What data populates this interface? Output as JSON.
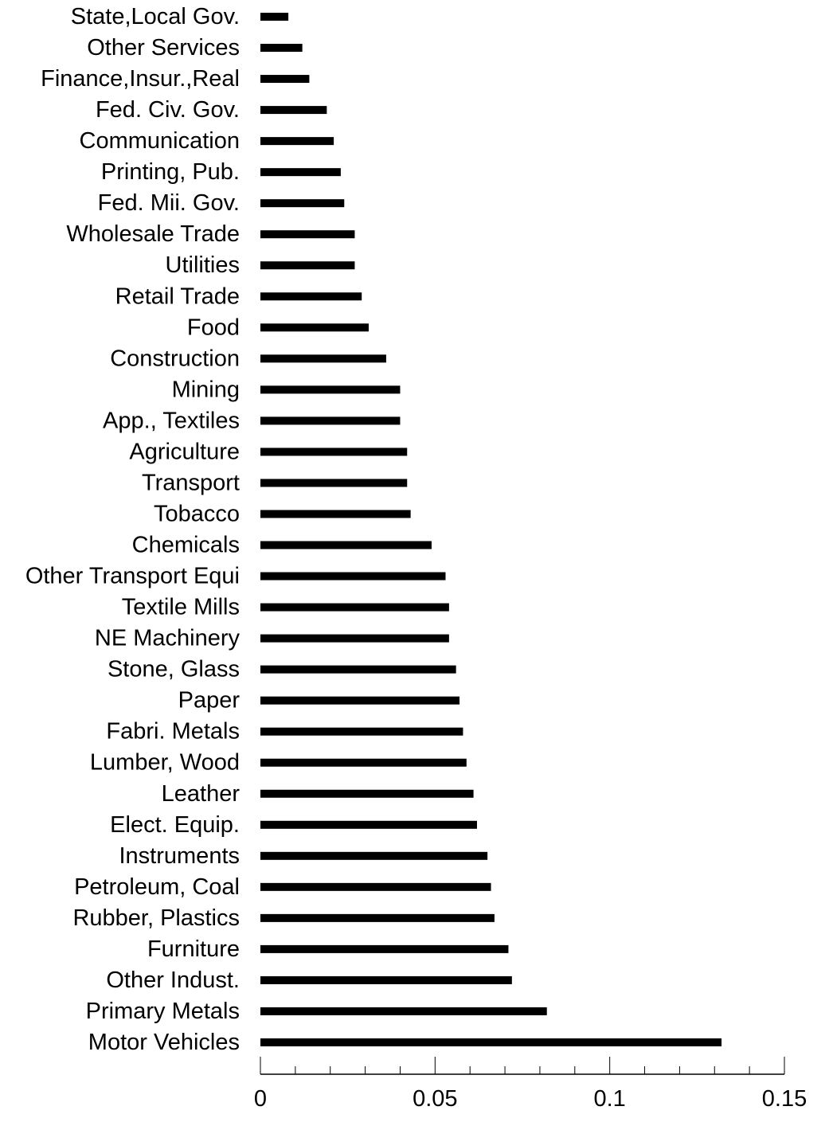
{
  "chart_data": {
    "type": "bar",
    "orientation": "horizontal",
    "title": "",
    "xlabel": "",
    "ylabel": "",
    "xlim": [
      0,
      0.15
    ],
    "x_ticks": [
      0,
      0.05,
      0.1,
      0.15
    ],
    "x_tick_labels": [
      "0",
      "0.05",
      "0.1",
      "0.15"
    ],
    "grid": false,
    "legend": "none",
    "bar_color": "#000000",
    "categories": [
      "State,Local Gov.",
      "Other Services",
      "Finance,Insur.,Real",
      "Fed. Civ. Gov.",
      "Communication",
      "Printing, Pub.",
      "Fed. Mii. Gov.",
      "Wholesale  Trade",
      "Utilities",
      "Retail Trade",
      "Food",
      "Construction",
      "Mining",
      "App., Textiles",
      "Agriculture",
      "Transport",
      "Tobacco",
      "Chemicals",
      "Other Transport Equi",
      "Textile Mills",
      "NE Machinery",
      "Stone, Glass",
      "Paper",
      "Fabri. Metals",
      "Lumber, Wood",
      "Leather",
      "Elect. Equip.",
      "Instruments",
      "Petroleum, Coal",
      "Rubber, Plastics",
      "Furniture",
      "Other Indust.",
      "Primary Metals",
      "Motor Vehicles"
    ],
    "values": [
      0.008,
      0.012,
      0.014,
      0.019,
      0.021,
      0.023,
      0.024,
      0.027,
      0.027,
      0.029,
      0.031,
      0.036,
      0.04,
      0.04,
      0.042,
      0.042,
      0.043,
      0.049,
      0.053,
      0.054,
      0.054,
      0.056,
      0.057,
      0.058,
      0.059,
      0.061,
      0.062,
      0.065,
      0.066,
      0.067,
      0.071,
      0.072,
      0.082,
      0.132
    ]
  }
}
